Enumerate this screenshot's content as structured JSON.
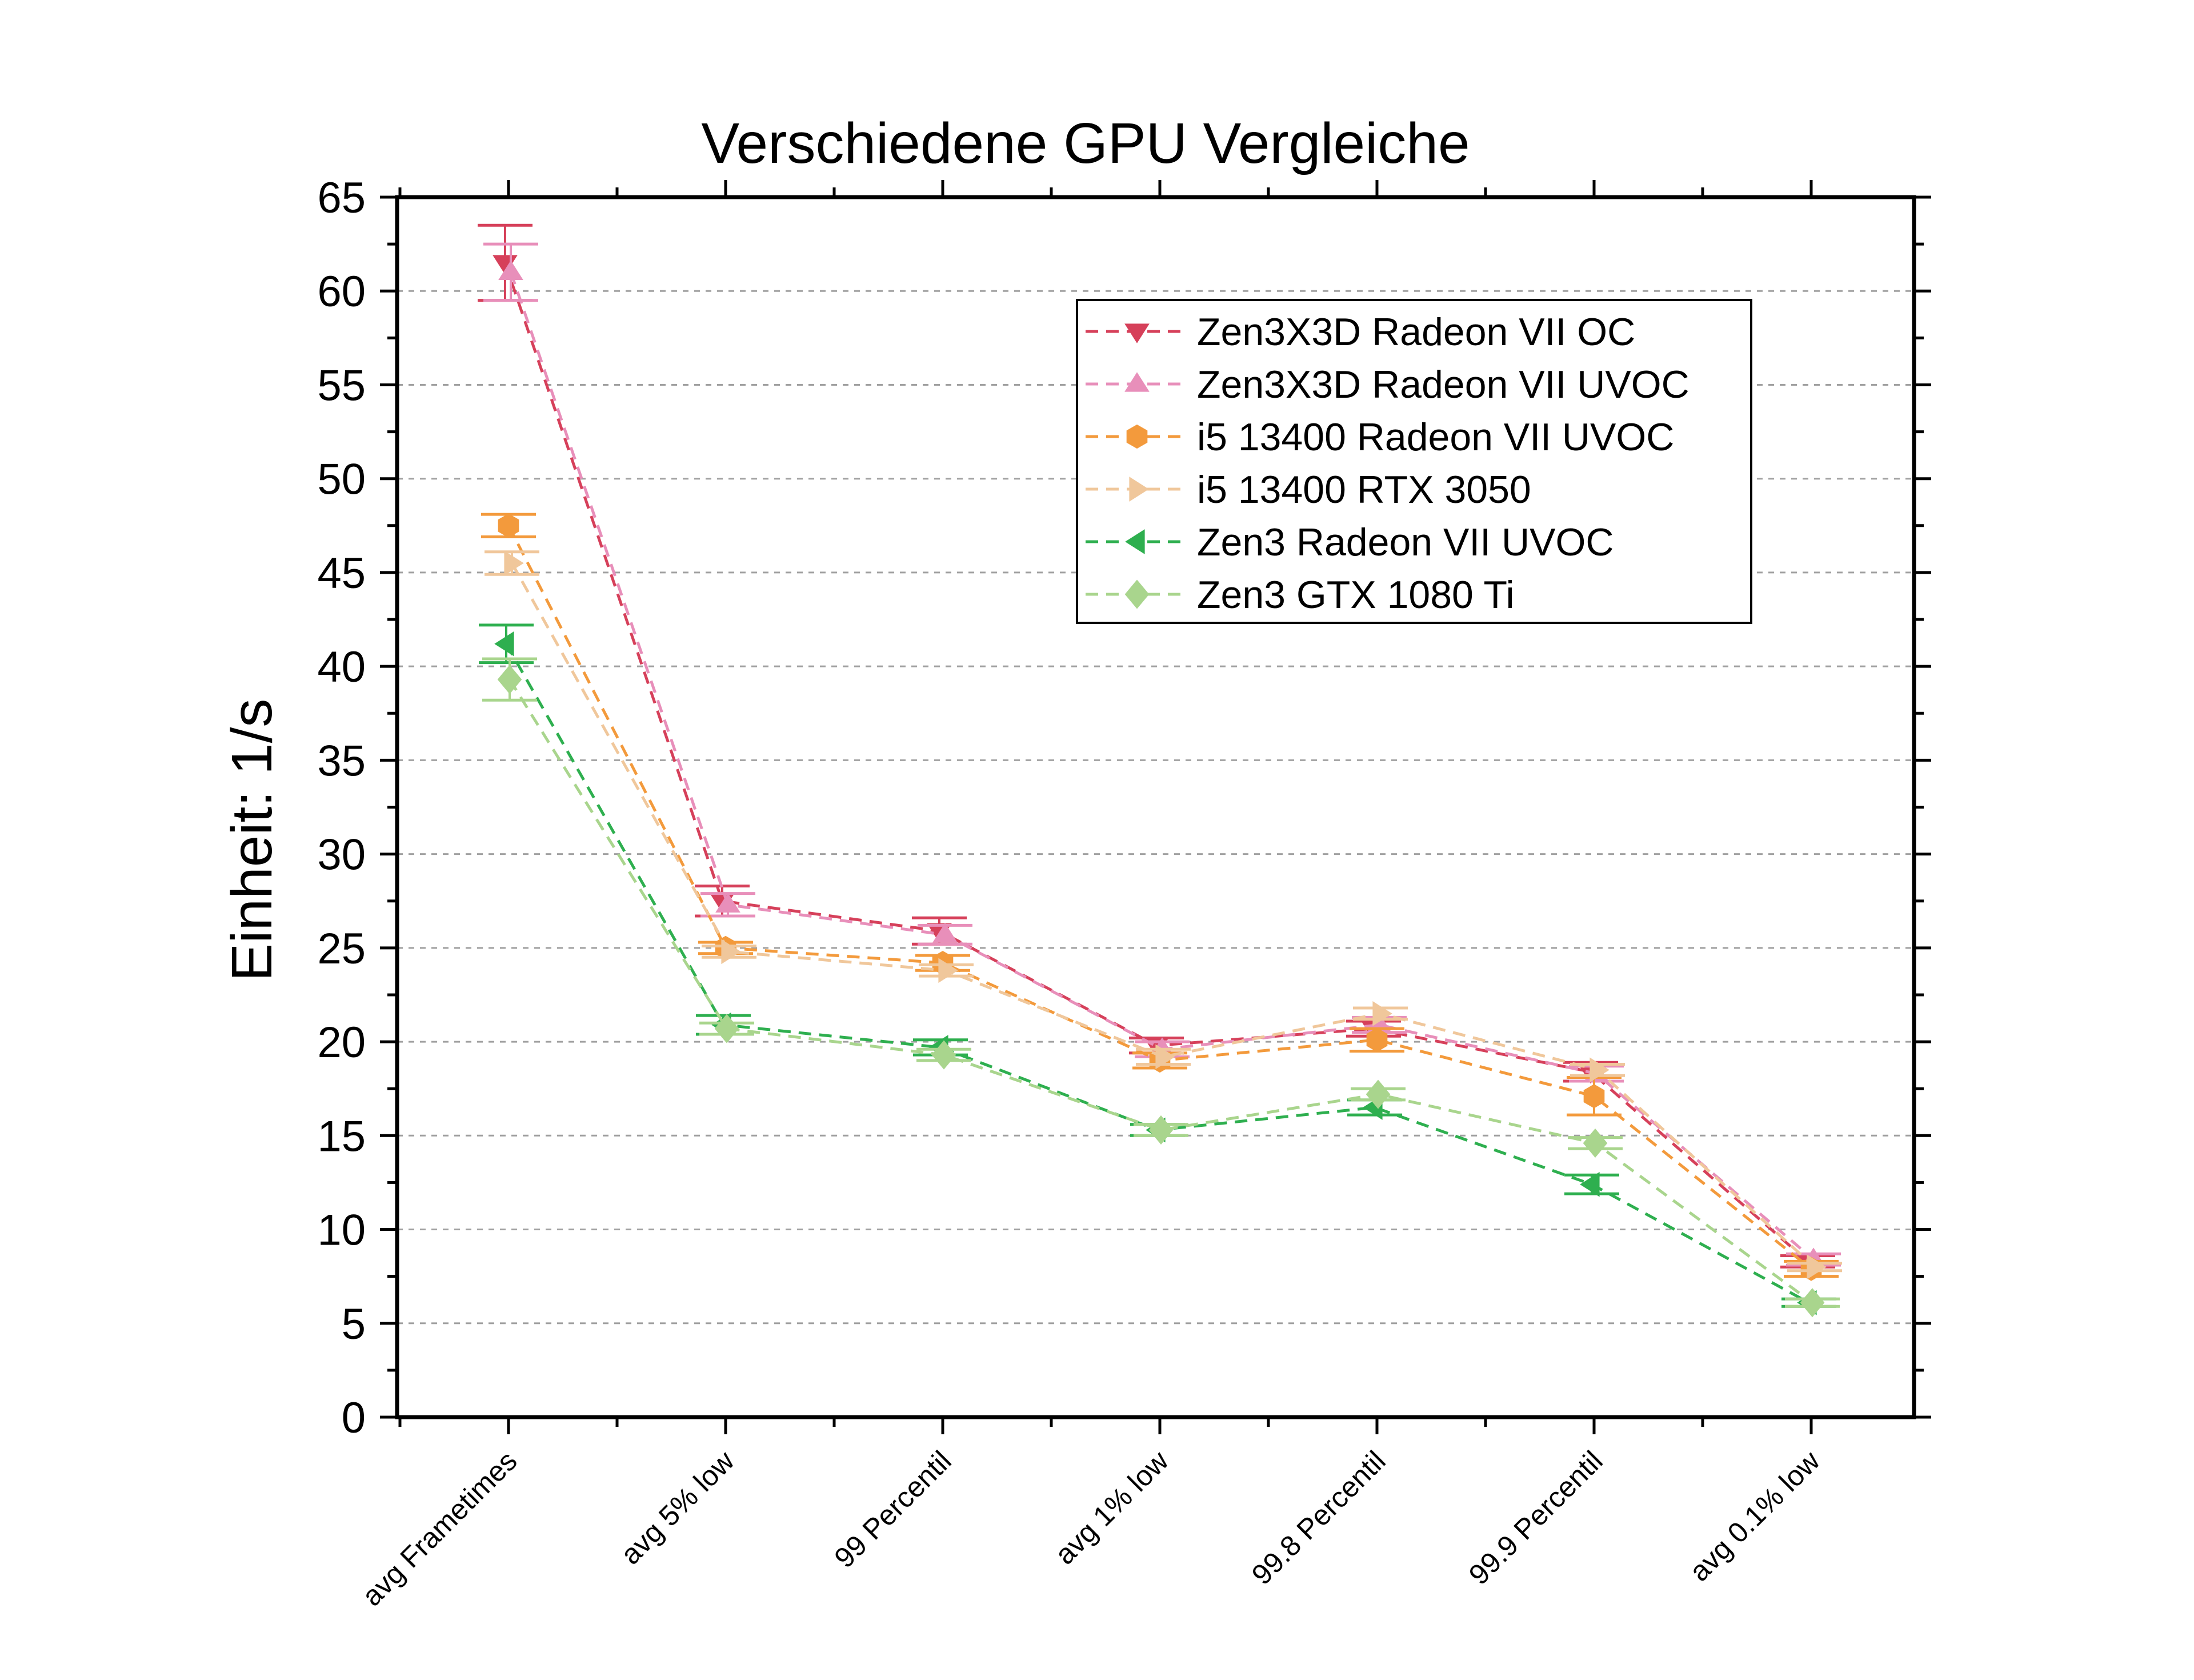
{
  "chart_data": {
    "type": "line",
    "title": "Verschiedene GPU Vergleiche",
    "xlabel": "",
    "ylabel": "Einheit: 1/s",
    "ylim": [
      0,
      65
    ],
    "yticks": [
      0,
      5,
      10,
      15,
      20,
      25,
      30,
      35,
      40,
      45,
      50,
      55,
      60,
      65
    ],
    "grid": true,
    "legend_position": "upper-right",
    "categories": [
      "avg Frametimes",
      "avg 5% low",
      "99 Percentil",
      "avg 1% low",
      "99.8 Percentil",
      "99.9 Percentil",
      "avg 0.1% low"
    ],
    "series": [
      {
        "name": "Zen3X3D Radeon VII OC",
        "color": "#d6405a",
        "marker": "triangle-down",
        "values": [
          61.5,
          27.5,
          25.9,
          19.8,
          20.7,
          18.4,
          8.3
        ],
        "errors": [
          2.0,
          0.8,
          0.7,
          0.4,
          0.4,
          0.5,
          0.3
        ]
      },
      {
        "name": "Zen3X3D Radeon VII UVOC",
        "color": "#e88fba",
        "marker": "triangle-up",
        "values": [
          61.0,
          27.3,
          25.7,
          19.6,
          20.9,
          18.3,
          8.4
        ],
        "errors": [
          1.5,
          0.6,
          0.5,
          0.4,
          0.4,
          0.4,
          0.3
        ]
      },
      {
        "name": "i5 13400 Radeon VII UVOC",
        "color": "#f39a3c",
        "marker": "hexagon",
        "values": [
          47.5,
          25.0,
          24.2,
          19.0,
          20.1,
          17.1,
          7.9
        ],
        "errors": [
          0.6,
          0.3,
          0.4,
          0.4,
          0.6,
          1.0,
          0.4
        ]
      },
      {
        "name": "i5 13400 RTX 3050",
        "color": "#f0c79b",
        "marker": "triangle-right",
        "values": [
          45.5,
          24.8,
          23.8,
          19.2,
          21.5,
          18.5,
          8.0
        ],
        "errors": [
          0.6,
          0.3,
          0.3,
          0.4,
          0.3,
          0.3,
          0.2
        ]
      },
      {
        "name": "Zen3 Radeon VII UVOC",
        "color": "#2eaf4f",
        "marker": "triangle-left",
        "values": [
          41.2,
          20.9,
          19.7,
          15.3,
          16.5,
          12.4,
          6.1
        ],
        "errors": [
          1.0,
          0.5,
          0.4,
          0.3,
          0.4,
          0.5,
          0.2
        ]
      },
      {
        "name": "Zen3 GTX 1080 Ti",
        "color": "#a9d58d",
        "marker": "diamond",
        "values": [
          39.3,
          20.7,
          19.3,
          15.3,
          17.2,
          14.6,
          6.1
        ],
        "errors": [
          1.1,
          0.3,
          0.3,
          0.3,
          0.3,
          0.3,
          0.2
        ]
      }
    ]
  }
}
